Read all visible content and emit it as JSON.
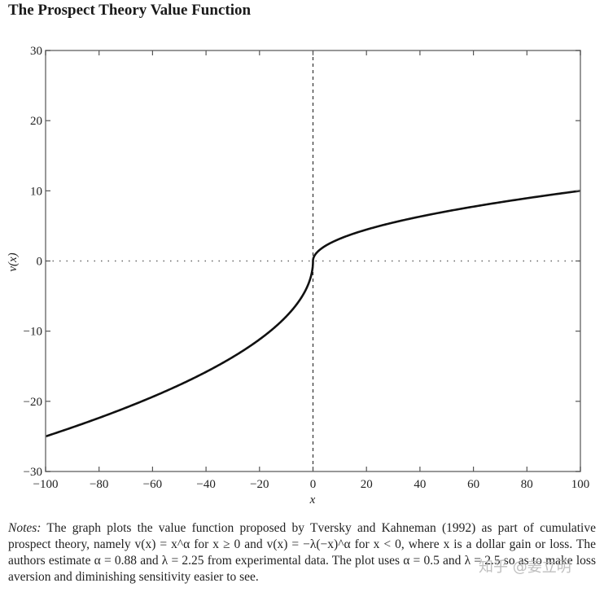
{
  "title": "The Prospect Theory Value Function",
  "notes": {
    "lead": "Notes:",
    "text": " The graph plots the value function proposed by Tversky and Kahneman (1992) as part of cumulative prospect theory, namely v(x) = x^α for x ≥ 0 and v(x) = −λ(−x)^α for x < 0, where x is a dollar gain or loss. The authors estimate α = 0.88 and λ = 2.25 from experimental data. The plot uses α = 0.5 and λ = 2.5 so as to make loss aversion and diminishing sensitivity easier to see."
  },
  "watermark": "知乎 @姜立明",
  "chart_data": {
    "type": "line",
    "title": "The Prospect Theory Value Function",
    "xlabel": "x",
    "ylabel": "v(x)",
    "xlim": [
      -100,
      100
    ],
    "ylim": [
      -30,
      30
    ],
    "xticks": [
      -100,
      -80,
      -60,
      -40,
      -20,
      0,
      20,
      40,
      60,
      80,
      100
    ],
    "yticks": [
      -30,
      -20,
      -10,
      0,
      10,
      20,
      30
    ],
    "xtick_labels": [
      "−100",
      "−80",
      "−60",
      "−40",
      "−20",
      "0",
      "20",
      "40",
      "60",
      "80",
      "100"
    ],
    "ytick_labels": [
      "−30",
      "−20",
      "−10",
      "0",
      "10",
      "20",
      "30"
    ],
    "grid": false,
    "reference_lines": [
      {
        "orientation": "horizontal",
        "value": 0,
        "style": "dotted"
      },
      {
        "orientation": "vertical",
        "value": 0,
        "style": "dashed"
      }
    ],
    "series": [
      {
        "name": "v(x)",
        "function": "v(x)=x^0.5 for x>=0; v(x)=-2.5(-x)^0.5 for x<0",
        "alpha": 0.5,
        "lambda": 2.5,
        "x": [
          -100,
          -80,
          -60,
          -40,
          -20,
          -10,
          -5,
          -1,
          0,
          1,
          5,
          10,
          20,
          40,
          60,
          80,
          100
        ],
        "values": [
          -25,
          -22.36,
          -19.36,
          -15.81,
          -11.18,
          -7.91,
          -5.59,
          -2.5,
          0,
          1,
          2.24,
          3.16,
          4.47,
          6.32,
          7.75,
          8.94,
          10
        ]
      }
    ]
  }
}
